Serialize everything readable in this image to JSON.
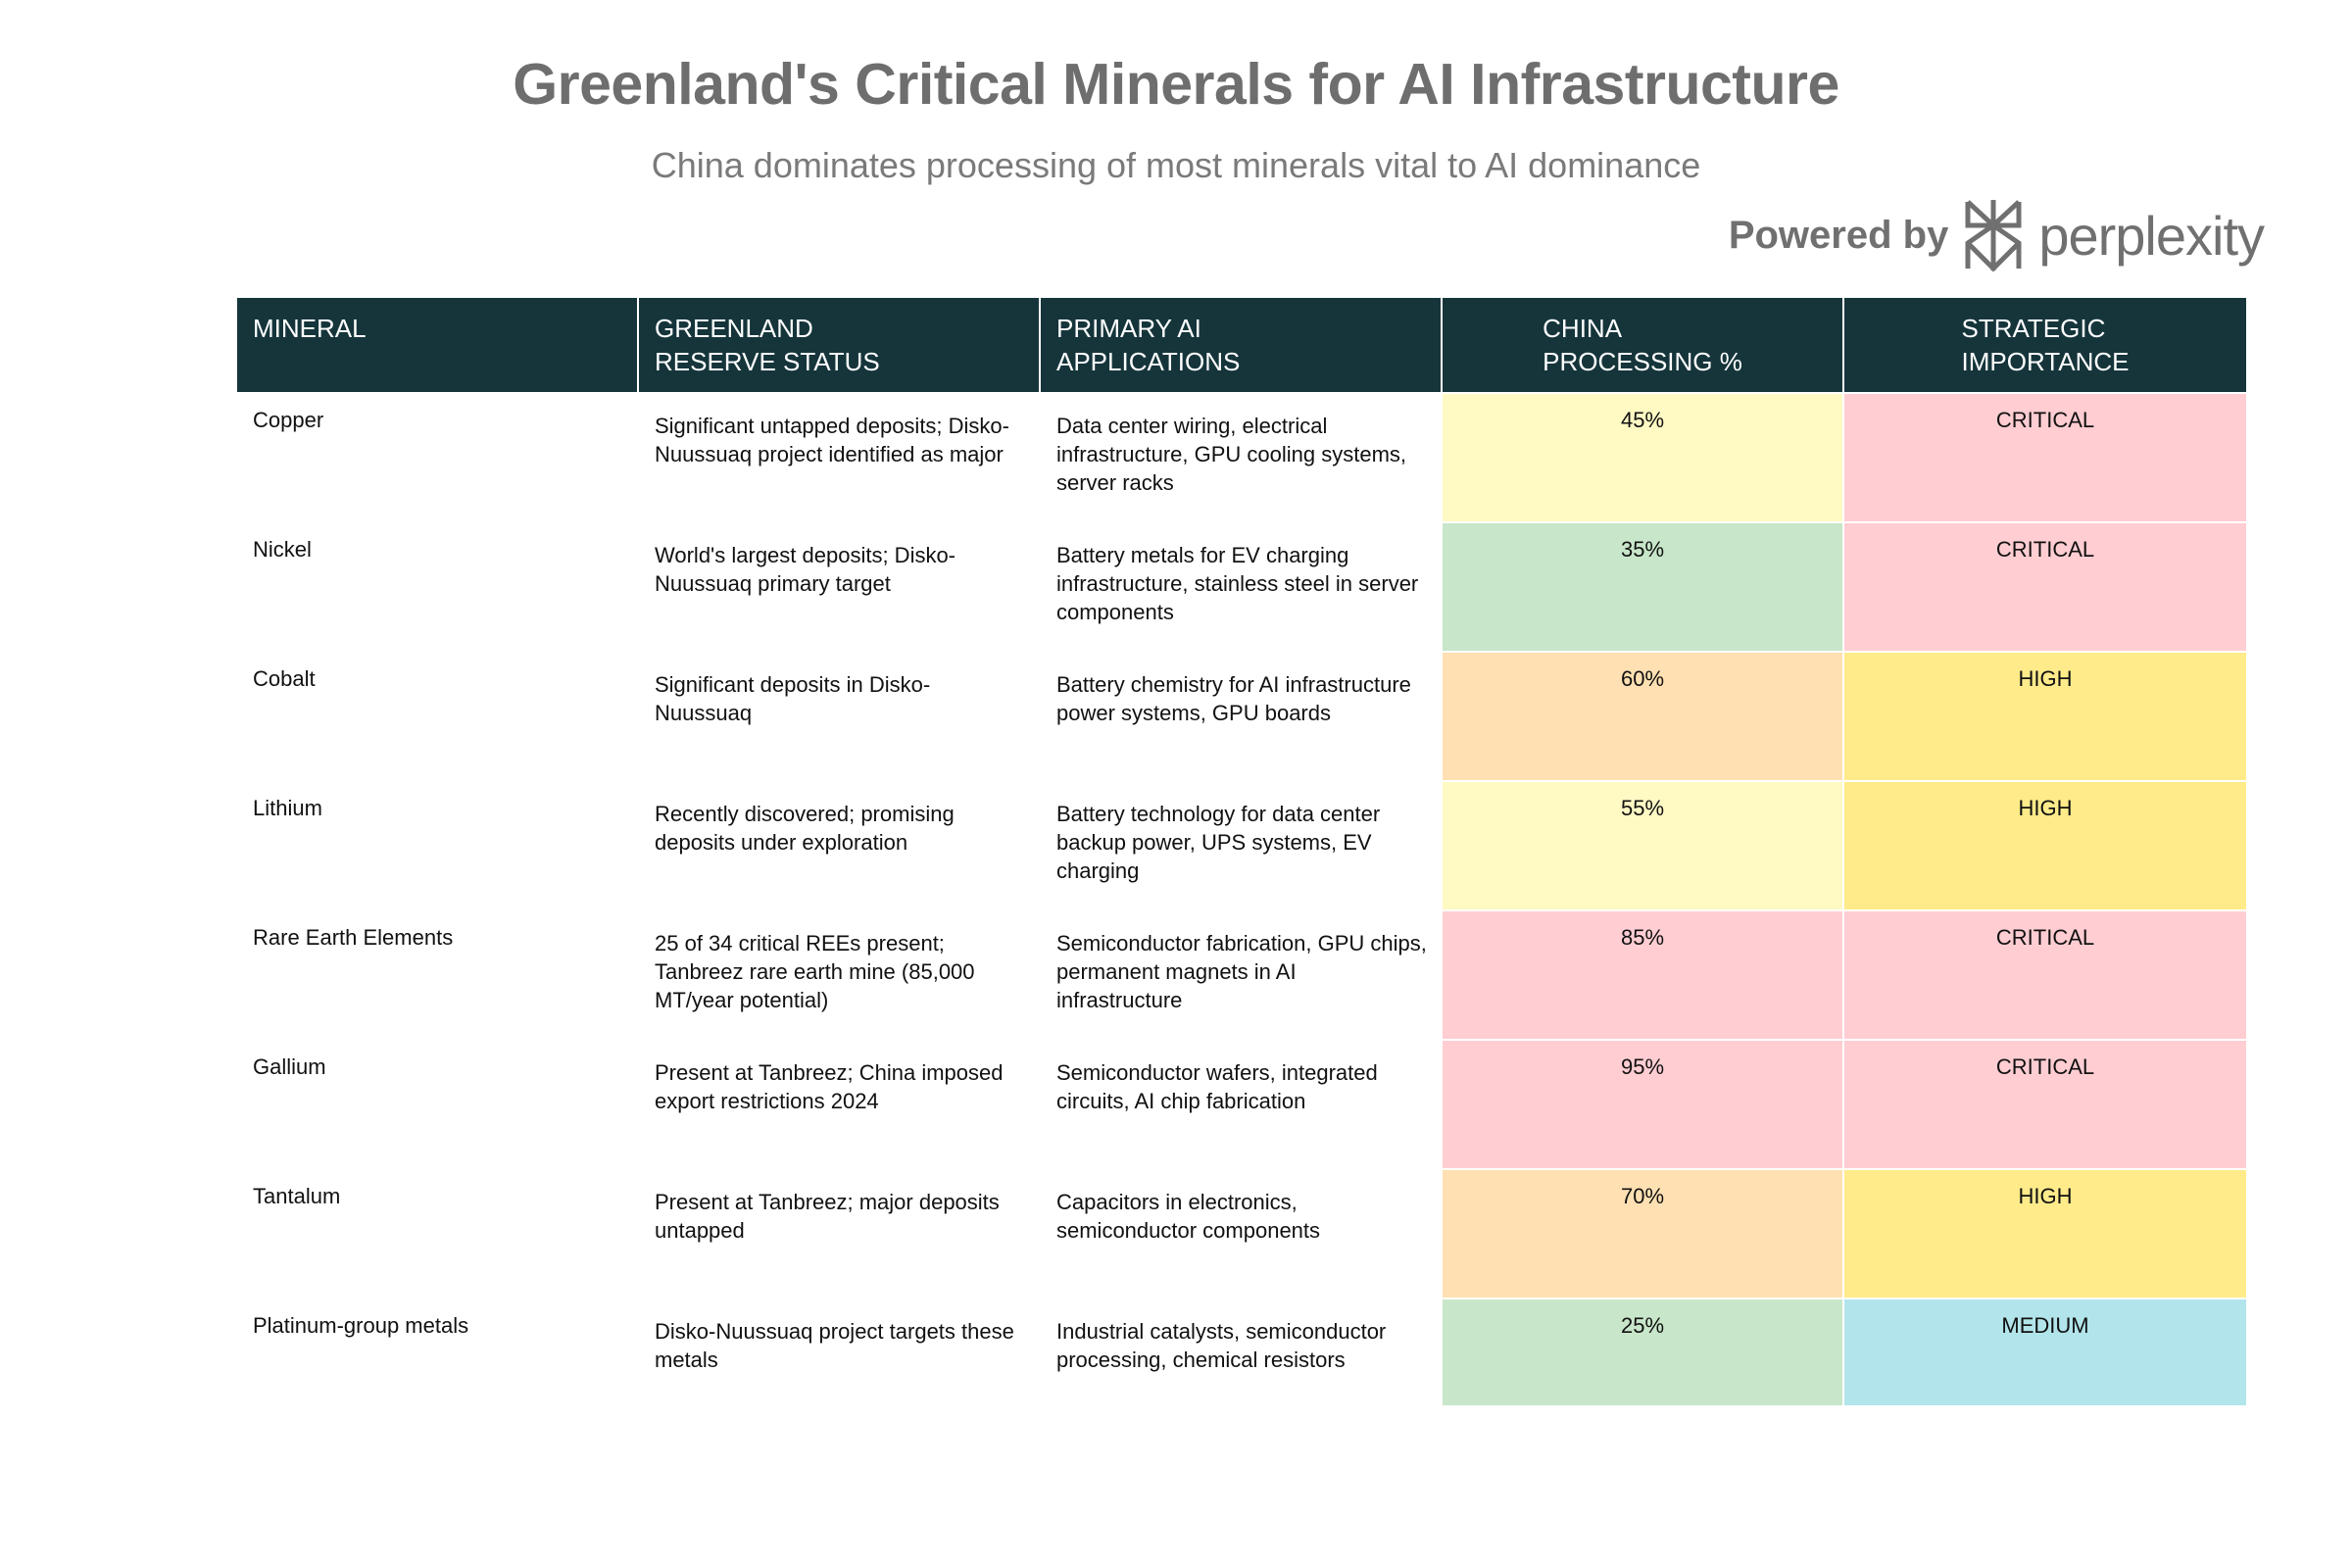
{
  "title": "Greenland's Critical Minerals for AI Infrastructure",
  "subtitle": "China dominates processing of most minerals vital to AI dominance",
  "brand": {
    "powered": "Powered by",
    "name": "perplexity",
    "icon": "perplexity-logo-icon"
  },
  "chart_data": {
    "type": "table",
    "columns": [
      "MINERAL",
      "GREENLAND\nRESERVE STATUS",
      "PRIMARY AI\nAPPLICATIONS",
      "CHINA\nPROCESSING %",
      "STRATEGIC\nIMPORTANCE"
    ],
    "rows": [
      {
        "mineral": "Copper",
        "reserve": "Significant untapped deposits; Disko-Nuussuaq project identified as major",
        "applications": "Data center wiring, electrical infrastructure, GPU cooling systems, server racks",
        "china_pct": "45%",
        "importance": "CRITICAL"
      },
      {
        "mineral": "Nickel",
        "reserve": "World's largest deposits; Disko-Nuussuaq primary target",
        "applications": "Battery metals for EV charging infrastructure, stainless steel in server components",
        "china_pct": "35%",
        "importance": "CRITICAL"
      },
      {
        "mineral": "Cobalt",
        "reserve": "Significant deposits in Disko-Nuussuaq",
        "applications": "Battery chemistry for AI infrastructure power systems, GPU boards",
        "china_pct": "60%",
        "importance": "HIGH"
      },
      {
        "mineral": "Lithium",
        "reserve": "Recently discovered; promising deposits under exploration",
        "applications": "Battery technology for data center backup power, UPS systems, EV charging",
        "china_pct": "55%",
        "importance": "HIGH"
      },
      {
        "mineral": "Rare Earth Elements",
        "reserve": "25 of 34 critical REEs present; Tanbreez rare earth mine (85,000 MT/year potential)",
        "applications": "Semiconductor fabrication, GPU chips, permanent magnets in AI infrastructure",
        "china_pct": "85%",
        "importance": "CRITICAL"
      },
      {
        "mineral": "Gallium",
        "reserve": "Present at Tanbreez; China imposed export restrictions 2024",
        "applications": "Semiconductor wafers, integrated circuits, AI chip fabrication",
        "china_pct": "95%",
        "importance": "CRITICAL"
      },
      {
        "mineral": "Tantalum",
        "reserve": "Present at Tanbreez; major deposits untapped",
        "applications": "Capacitors in electronics, semiconductor components",
        "china_pct": "70%",
        "importance": "HIGH"
      },
      {
        "mineral": "Platinum-group metals",
        "reserve": "Disko-Nuussuaq project targets these metals",
        "applications": "Industrial catalysts, semiconductor processing, chemical resistors",
        "china_pct": "25%",
        "importance": "MEDIUM"
      }
    ],
    "colors": {
      "header_bg": "#15353b",
      "pct": {
        "25%": "#c8e6c9",
        "35%": "#c8e6c9",
        "45%": "#fff9c4",
        "55%": "#fff9c4",
        "60%": "#ffe0b2",
        "70%": "#ffe0b2",
        "85%": "#ffcdd2",
        "95%": "#ffcdd2"
      },
      "importance": {
        "CRITICAL": "#ffcdd2",
        "HIGH": "#ffeb8a",
        "MEDIUM": "#b2e5eb"
      }
    }
  }
}
